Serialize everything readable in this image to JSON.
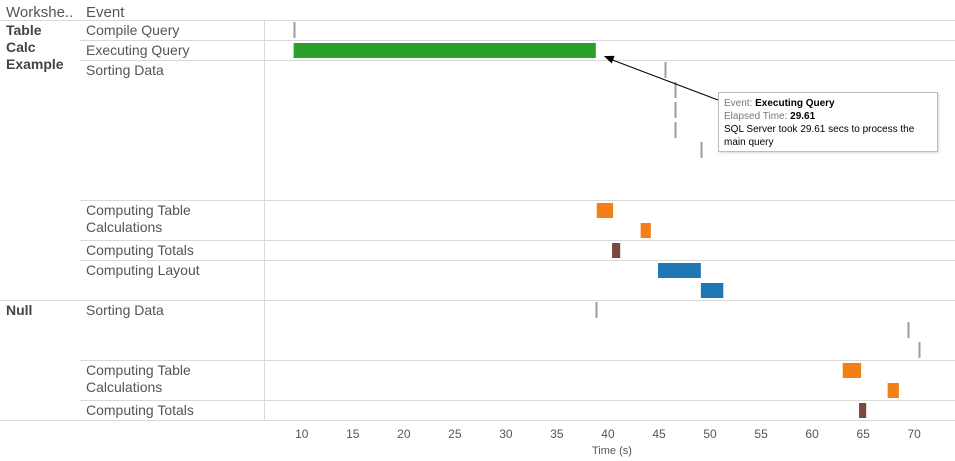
{
  "header": {
    "worksheet": "Workshe..",
    "event": "Event"
  },
  "worksheets": [
    {
      "label": "Table\nCalc\nExample"
    },
    {
      "label": "Null"
    }
  ],
  "rows": [
    {
      "worksheet": 0,
      "event": "Compile Query"
    },
    {
      "worksheet": 0,
      "event": "Executing Query"
    },
    {
      "worksheet": 0,
      "event": "Sorting Data"
    },
    {
      "worksheet": 0,
      "event": "Computing Table\nCalculations"
    },
    {
      "worksheet": 0,
      "event": "Computing Totals"
    },
    {
      "worksheet": 0,
      "event": "Computing Layout"
    },
    {
      "worksheet": 1,
      "event": "Sorting Data"
    },
    {
      "worksheet": 1,
      "event": "Computing Table\nCalculations"
    },
    {
      "worksheet": 1,
      "event": "Computing Totals"
    }
  ],
  "chart_data": {
    "type": "bar",
    "subtype": "gantt",
    "xlabel": "Time (s)",
    "xlim": [
      6.3,
      74
    ],
    "x_ticks": [
      10,
      15,
      20,
      25,
      30,
      35,
      40,
      45,
      50,
      55,
      60,
      65,
      70
    ],
    "grid": "horizontal row separators",
    "event_colors": {
      "Executing Query": "#2ca02c",
      "Computing Table Calculations": "#f57f17",
      "Computing Totals": "#7b4a3e",
      "Computing Layout": "#1f77b4",
      "Instant": "#9e9e9e"
    },
    "marks": [
      {
        "row": 0,
        "start": 9.2,
        "duration": 0.0
      },
      {
        "row": 1,
        "start": 9.2,
        "duration": 29.61
      },
      {
        "row": 2,
        "start": 45.6,
        "duration": 0.0
      },
      {
        "row": 2,
        "start": 46.6,
        "duration": 0.0
      },
      {
        "row": 2,
        "start": 46.6,
        "duration": 0.0
      },
      {
        "row": 2,
        "start": 46.6,
        "duration": 0.0
      },
      {
        "row": 2,
        "start": 49.1,
        "duration": 0.0
      },
      {
        "row": 3,
        "start": 38.9,
        "duration": 1.6
      },
      {
        "row": 3,
        "start": 43.2,
        "duration": 1.0
      },
      {
        "row": 4,
        "start": 40.4,
        "duration": 0.8
      },
      {
        "row": 5,
        "start": 44.9,
        "duration": 4.2
      },
      {
        "row": 5,
        "start": 49.1,
        "duration": 2.2
      },
      {
        "row": 6,
        "start": 38.8,
        "duration": 0.0
      },
      {
        "row": 6,
        "start": 69.4,
        "duration": 0.0
      },
      {
        "row": 6,
        "start": 70.5,
        "duration": 0.0
      },
      {
        "row": 7,
        "start": 63.0,
        "duration": 1.8
      },
      {
        "row": 7,
        "start": 67.4,
        "duration": 1.1
      },
      {
        "row": 8,
        "start": 64.6,
        "duration": 0.7
      }
    ]
  },
  "tooltip": {
    "event_label": "Event:",
    "event_value": "Executing Query",
    "elapsed_label": "Elapsed Time:",
    "elapsed_value": "29.61",
    "note": "SQL Server took 29.61 secs to process the main query"
  }
}
